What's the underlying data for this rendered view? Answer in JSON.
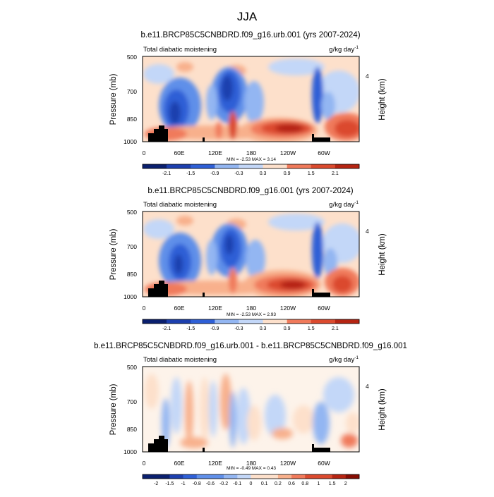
{
  "title": "JJA",
  "colors": {
    "cool": [
      "#0a1f6e",
      "#1c3fae",
      "#2e5fd6",
      "#5f8fe9",
      "#93b6f2",
      "#c3d7f8"
    ],
    "warm": [
      "#fde0cb",
      "#f8b08c",
      "#f07a5b",
      "#db4a2e",
      "#b52412",
      "#850c03"
    ],
    "terrain": "#000000"
  },
  "chart_data": [
    {
      "type": "heatmap",
      "title": "b.e11.BRCP85C5CNBDRD.f09_g16.urb.001 (yrs 2007-2024)",
      "left_label": "Total diabatic moistening",
      "units": "g/kg day",
      "units_exponent": "-1",
      "ylabel": "Pressure (mb)",
      "ylabel_right": "Height (km)",
      "yticks": [
        "500",
        "700",
        "850",
        "1000"
      ],
      "yticks_right": [
        "4"
      ],
      "xticks": [
        "0",
        "60E",
        "120E",
        "180",
        "120W",
        "60W"
      ],
      "stats": "MIN = -2.53  MAX = 3.14",
      "colorbar_labels": [
        "-2.1",
        "-1.5",
        "-0.9",
        "-0.3",
        "0.3",
        "0.9",
        "1.5",
        "2.1"
      ]
    },
    {
      "type": "heatmap",
      "title": "b.e11.BRCP85C5CNBDRD.f09_g16.001 (yrs 2007-2024)",
      "left_label": "Total diabatic moistening",
      "units": "g/kg day",
      "units_exponent": "-1",
      "ylabel": "Pressure (mb)",
      "ylabel_right": "Height (km)",
      "yticks": [
        "500",
        "700",
        "850",
        "1000"
      ],
      "yticks_right": [
        "4"
      ],
      "xticks": [
        "0",
        "60E",
        "120E",
        "180",
        "120W",
        "60W"
      ],
      "stats": "MIN = -2.53  MAX = 2.93",
      "colorbar_labels": [
        "-2.1",
        "-1.5",
        "-0.9",
        "-0.3",
        "0.3",
        "0.9",
        "1.5",
        "2.1"
      ]
    },
    {
      "type": "heatmap",
      "title": "b.e11.BRCP85C5CNBDRD.f09_g16.urb.001 - b.e11.BRCP85C5CNBDRD.f09_g16.001",
      "left_label": "Total diabatic moistening",
      "units": "g/kg day",
      "units_exponent": "-1",
      "ylabel": "Pressure (mb)",
      "ylabel_right": "Height (km)",
      "yticks": [
        "500",
        "700",
        "850",
        "1000"
      ],
      "yticks_right": [
        "4"
      ],
      "xticks": [
        "0",
        "60E",
        "120E",
        "180",
        "120W",
        "60W"
      ],
      "stats": "MIN = -0.49  MAX = 0.43",
      "colorbar_labels": [
        "-2",
        "-1.5",
        "-1",
        "-0.8",
        "-0.6",
        "-0.2",
        "-0.1",
        "0",
        "0.1",
        "0.2",
        "0.6",
        "0.8",
        "1",
        "1.5",
        "2"
      ]
    }
  ]
}
